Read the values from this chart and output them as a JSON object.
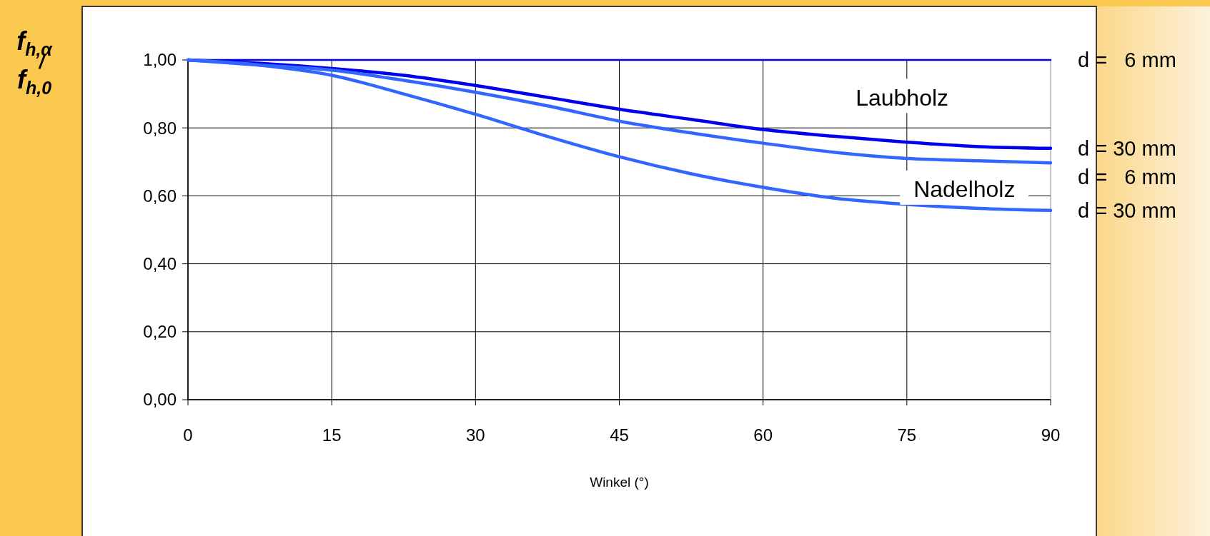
{
  "chart_data": {
    "type": "line",
    "xlabel": "Winkel (°)",
    "ylabel": "f$_{h,α}$/f$_{h,0}$",
    "annotations": [
      "Laubholz",
      "Nadelholz"
    ],
    "x": [
      0,
      7.5,
      15,
      22.5,
      30,
      37.5,
      45,
      52.5,
      60,
      67.5,
      75,
      82.5,
      90
    ],
    "series": [
      {
        "name": "d =   6 mm",
        "color": "#0000ff",
        "values": [
          1,
          1,
          1,
          1,
          1,
          1,
          1,
          1,
          1,
          1,
          1,
          1,
          1
        ]
      },
      {
        "name": "d = 30 mm",
        "color": "#0000ee",
        "values": [
          1,
          0.99,
          0.975,
          0.955,
          0.925,
          0.89,
          0.855,
          0.825,
          0.795,
          0.775,
          0.758,
          0.745,
          0.74
        ]
      },
      {
        "name": "d =   6 mm",
        "color": "#3366ff",
        "values": [
          1,
          0.985,
          0.97,
          0.94,
          0.905,
          0.865,
          0.82,
          0.785,
          0.755,
          0.728,
          0.71,
          0.703,
          0.697
        ]
      },
      {
        "name": "d = 30 mm",
        "color": "#3366ff",
        "values": [
          1,
          0.985,
          0.955,
          0.9,
          0.84,
          0.775,
          0.715,
          0.665,
          0.625,
          0.593,
          0.575,
          0.563,
          0.557
        ]
      }
    ],
    "xlim": [
      0,
      90
    ],
    "xticks": [
      0,
      15,
      30,
      45,
      60,
      75,
      90
    ],
    "ylim": [
      0,
      1
    ],
    "yticks": [
      {
        "value": 0,
        "label": "0,00"
      },
      {
        "value": 0.2,
        "label": "0,20"
      },
      {
        "value": 0.4,
        "label": "0,40"
      },
      {
        "value": 0.6,
        "label": "0,60"
      },
      {
        "value": 0.8,
        "label": "0,80"
      },
      {
        "value": 1,
        "label": "1,00"
      }
    ],
    "grid": true,
    "legend": false,
    "marker": "none",
    "line_style": "solid"
  }
}
